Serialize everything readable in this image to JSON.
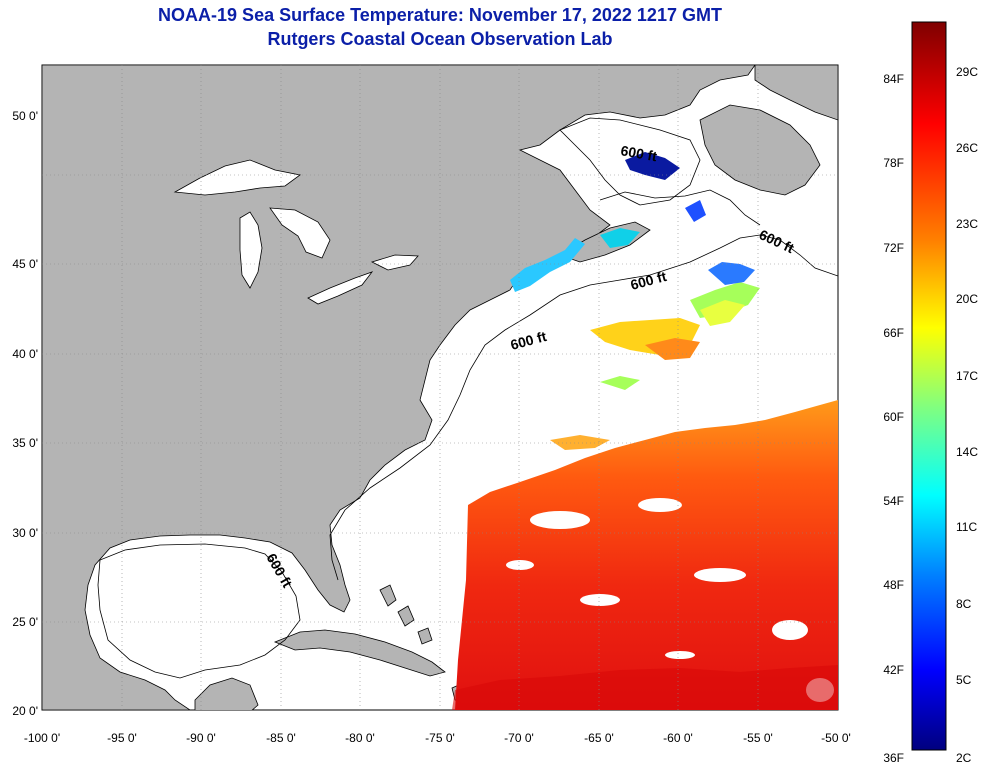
{
  "title": "NOAA-19 Sea Surface Temperature:  November 17, 2022 1217 GMT",
  "subtitle": "Rutgers Coastal Ocean Observation Lab",
  "map": {
    "lon_range": [
      -100,
      -50
    ],
    "lat_range": [
      20,
      52
    ],
    "lon_ticks": [
      "-100 0'",
      "-95 0'",
      "-90 0'",
      "-85 0'",
      "-80 0'",
      "-75 0'",
      "-70 0'",
      "-65 0'",
      "-60 0'",
      "-55 0'",
      "-50 0'"
    ],
    "lat_ticks": [
      "20 0'",
      "25 0'",
      "30 0'",
      "35 0'",
      "40 0'",
      "45 0'",
      "50 0'"
    ],
    "land_color": "#b4b4b4",
    "ocean_color": "#ffffff",
    "depth_contour_labels": [
      "600 ft",
      "600 ft",
      "600 ft",
      "600 ft",
      "600 ft"
    ]
  },
  "colorbar": {
    "fahrenheit_labels": [
      "84F",
      "78F",
      "72F",
      "66F",
      "60F",
      "54F",
      "48F",
      "42F",
      "36F"
    ],
    "celsius_labels": [
      "29C",
      "26C",
      "23C",
      "20C",
      "17C",
      "14C",
      "11C",
      "8C",
      "5C",
      "2C"
    ]
  }
}
